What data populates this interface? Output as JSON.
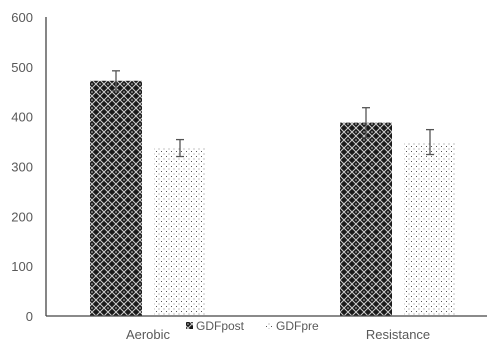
{
  "chart_data": {
    "type": "bar",
    "title": "",
    "xlabel": "",
    "ylabel": "",
    "categories": [
      "Aerobic",
      "Resistance"
    ],
    "series": [
      {
        "name": "GDFpost",
        "values": [
          472,
          388
        ],
        "error": [
          20,
          30
        ],
        "pattern": "dense-diamond"
      },
      {
        "name": "GDFpre",
        "values": [
          337,
          349
        ],
        "error": [
          17,
          25
        ],
        "pattern": "sparse-dots"
      }
    ],
    "ylim": [
      0,
      600
    ],
    "yticks": [
      0,
      100,
      200,
      300,
      400,
      500,
      600
    ],
    "grid": false,
    "legend_position": "bottom-center, between categories"
  },
  "colors": {
    "post_fill": "#1a1a1a",
    "pre_fill": "#ffffff",
    "pre_dots": "#555555",
    "axis": "#444444",
    "text": "#595959",
    "errorbar": "#555555"
  }
}
